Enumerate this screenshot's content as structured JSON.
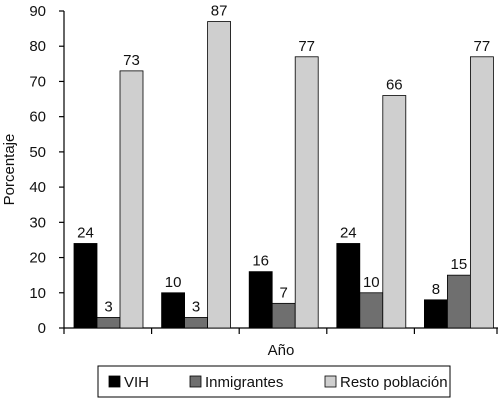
{
  "chart_data": {
    "type": "bar",
    "title": "",
    "xlabel": "Año",
    "ylabel": "Porcentaje",
    "ylim": [
      0,
      90
    ],
    "yticks": [
      0,
      10,
      20,
      30,
      40,
      50,
      60,
      70,
      80,
      90
    ],
    "categories": [
      "",
      "",
      "",
      "",
      ""
    ],
    "grid": false,
    "legend_position": "bottom",
    "series": [
      {
        "name": "VIH",
        "color": "#000000",
        "values": [
          24,
          10,
          16,
          24,
          8
        ]
      },
      {
        "name": "Inmigrantes",
        "color": "#6f6f6f",
        "values": [
          3,
          3,
          7,
          10,
          15
        ]
      },
      {
        "name": "Resto población",
        "color": "#cfcfcf",
        "values": [
          73,
          87,
          77,
          66,
          77
        ]
      }
    ]
  }
}
